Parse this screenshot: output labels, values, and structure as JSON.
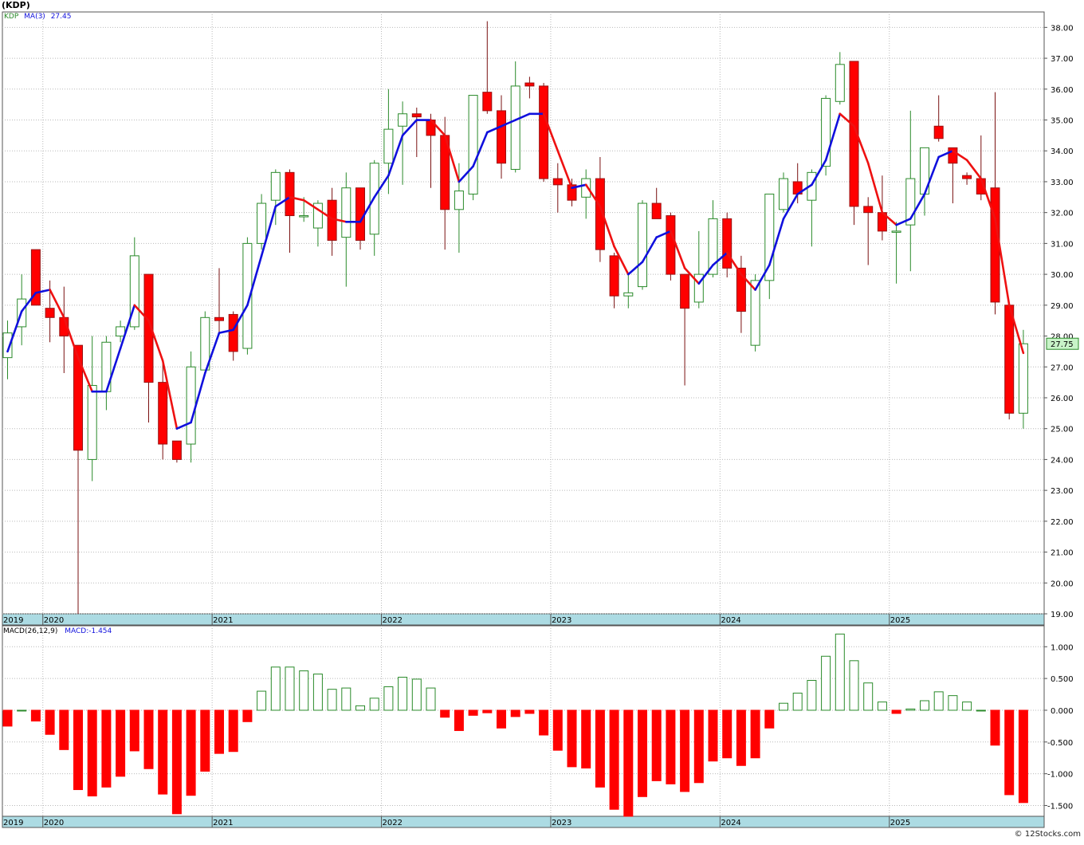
{
  "header": {
    "title": "(KDP)"
  },
  "price_legend": {
    "symbol": "KDP",
    "ma_label": "MA(3)",
    "ma_value": "27.45"
  },
  "macd_legend": {
    "label": "MACD(26,12,9)",
    "value_label": "MACD:-1.454"
  },
  "last_price": "27.75",
  "credit": "© 12Stocks.com",
  "colors": {
    "up": "#2a8a2a",
    "down": "#ff0000",
    "ma_up": "#1010dd",
    "ma_down": "#ee1111",
    "axis_band": "#acdbe3",
    "grid": "#b9b9b9",
    "last_price_box": "#c8f3c8"
  },
  "chart_data": [
    {
      "type": "candlestick",
      "title": "(KDP)",
      "period": "monthly",
      "ylim": [
        19,
        38.5
      ],
      "yticks": [
        19.0,
        20.0,
        21.0,
        22.0,
        23.0,
        24.0,
        25.0,
        26.0,
        27.0,
        28.0,
        29.0,
        30.0,
        31.0,
        32.0,
        33.0,
        34.0,
        35.0,
        36.0,
        37.0,
        38.0
      ],
      "year_labels": [
        "2019",
        "2020",
        "2021",
        "2022",
        "2023",
        "2024",
        "2025"
      ],
      "year_boundaries": [
        0,
        3,
        15,
        27,
        39,
        51,
        63
      ],
      "ohlc": [
        [
          27.3,
          28.5,
          26.6,
          28.1
        ],
        [
          28.3,
          30.0,
          27.7,
          29.2
        ],
        [
          30.8,
          30.8,
          29.0,
          29.0
        ],
        [
          28.9,
          29.8,
          27.8,
          28.6
        ],
        [
          28.6,
          29.6,
          26.8,
          28.0
        ],
        [
          27.7,
          27.7,
          19.0,
          24.3
        ],
        [
          24.0,
          28.0,
          23.3,
          26.4
        ],
        [
          26.2,
          28.0,
          25.6,
          27.8
        ],
        [
          28.0,
          28.5,
          27.8,
          28.3
        ],
        [
          28.3,
          31.2,
          28.2,
          30.6
        ],
        [
          30.0,
          30.0,
          25.2,
          26.5
        ],
        [
          26.5,
          27.2,
          24.0,
          24.5
        ],
        [
          24.6,
          24.6,
          23.9,
          24.0
        ],
        [
          24.5,
          27.5,
          23.9,
          27.0
        ],
        [
          26.9,
          28.8,
          26.9,
          28.6
        ],
        [
          28.6,
          30.2,
          28.1,
          28.5
        ],
        [
          28.7,
          28.8,
          27.2,
          27.5
        ],
        [
          27.6,
          31.2,
          27.4,
          31.0
        ],
        [
          31.0,
          32.6,
          30.8,
          32.3
        ],
        [
          32.4,
          33.4,
          31.6,
          33.3
        ],
        [
          33.3,
          33.4,
          30.7,
          31.9
        ],
        [
          31.9,
          32.5,
          31.7,
          31.9
        ],
        [
          31.5,
          32.4,
          30.9,
          32.3
        ],
        [
          32.4,
          32.8,
          30.6,
          31.1
        ],
        [
          31.2,
          33.3,
          29.6,
          32.8
        ],
        [
          32.8,
          32.8,
          30.8,
          31.1
        ],
        [
          31.3,
          33.7,
          30.6,
          33.6
        ],
        [
          33.6,
          36.0,
          32.6,
          34.7
        ],
        [
          34.8,
          35.6,
          32.9,
          35.2
        ],
        [
          35.2,
          35.4,
          33.8,
          35.1
        ],
        [
          35.0,
          35.2,
          32.8,
          34.5
        ],
        [
          34.5,
          35.1,
          30.8,
          32.1
        ],
        [
          32.1,
          33.6,
          30.7,
          32.7
        ],
        [
          32.6,
          35.8,
          32.4,
          35.8
        ],
        [
          35.9,
          38.2,
          35.2,
          35.3
        ],
        [
          35.3,
          35.8,
          33.1,
          33.6
        ],
        [
          33.4,
          36.9,
          33.3,
          36.1
        ],
        [
          36.2,
          36.4,
          35.7,
          36.1
        ],
        [
          36.1,
          36.2,
          33.0,
          33.1
        ],
        [
          33.1,
          33.6,
          32.0,
          32.9
        ],
        [
          32.9,
          33.1,
          32.2,
          32.4
        ],
        [
          32.5,
          33.4,
          31.8,
          33.1
        ],
        [
          33.1,
          33.8,
          30.4,
          30.8
        ],
        [
          30.6,
          30.7,
          28.9,
          29.3
        ],
        [
          29.3,
          30.0,
          28.9,
          29.4
        ],
        [
          29.6,
          32.4,
          29.5,
          32.3
        ],
        [
          32.3,
          32.8,
          31.9,
          31.8
        ],
        [
          31.9,
          32.0,
          29.8,
          30.0
        ],
        [
          30.0,
          30.0,
          26.4,
          28.9
        ],
        [
          29.1,
          31.4,
          28.9,
          30.0
        ],
        [
          30.0,
          32.4,
          29.9,
          31.8
        ],
        [
          31.8,
          32.0,
          29.9,
          30.2
        ],
        [
          30.2,
          30.6,
          28.1,
          28.8
        ],
        [
          27.7,
          30.0,
          27.5,
          29.8
        ],
        [
          29.8,
          32.6,
          29.2,
          32.6
        ],
        [
          32.1,
          33.3,
          32.0,
          33.1
        ],
        [
          33.0,
          33.6,
          32.3,
          32.6
        ],
        [
          32.4,
          33.4,
          30.9,
          33.3
        ],
        [
          33.5,
          35.8,
          33.2,
          35.7
        ],
        [
          35.6,
          37.2,
          35.5,
          36.8
        ],
        [
          36.9,
          36.9,
          31.6,
          32.2
        ],
        [
          32.2,
          32.5,
          30.3,
          32.0
        ],
        [
          32.0,
          33.2,
          31.1,
          31.4
        ],
        [
          31.4,
          31.7,
          29.7,
          31.4
        ],
        [
          31.6,
          35.3,
          30.1,
          33.1
        ],
        [
          32.6,
          34.1,
          31.9,
          34.1
        ],
        [
          34.8,
          35.8,
          34.3,
          34.4
        ],
        [
          34.1,
          34.1,
          32.3,
          33.6
        ],
        [
          33.2,
          33.3,
          32.9,
          33.1
        ],
        [
          33.1,
          34.5,
          32.4,
          32.6
        ],
        [
          32.8,
          35.9,
          28.7,
          29.1
        ],
        [
          29.0,
          29.1,
          25.3,
          25.5
        ],
        [
          25.5,
          28.2,
          25.0,
          27.75
        ]
      ],
      "ma3": [
        27.5,
        28.8,
        29.4,
        29.5,
        28.6,
        27.3,
        26.2,
        26.2,
        27.6,
        29.0,
        28.5,
        27.2,
        25.0,
        25.2,
        26.8,
        28.1,
        28.2,
        29.0,
        30.6,
        32.2,
        32.5,
        32.4,
        32.1,
        31.8,
        31.7,
        31.7,
        32.5,
        33.2,
        34.5,
        35.0,
        35.0,
        34.5,
        33.0,
        33.5,
        34.6,
        34.8,
        35.0,
        35.2,
        35.2,
        34.0,
        32.8,
        32.9,
        32.2,
        30.9,
        30.0,
        30.4,
        31.2,
        31.4,
        30.2,
        29.7,
        30.3,
        30.7,
        30.0,
        29.5,
        30.3,
        31.8,
        32.6,
        32.9,
        33.7,
        35.2,
        34.8,
        33.6,
        32.0,
        31.6,
        31.8,
        32.6,
        33.8,
        34.0,
        33.7,
        33.1,
        31.8,
        29.0,
        27.45
      ],
      "ma_color_segments": "blue while rising, red while falling"
    },
    {
      "type": "bar",
      "title": "MACD(26,12,9)",
      "ylim": [
        -1.67,
        1.33
      ],
      "yticks": [
        1.0,
        0.5,
        0.0,
        -0.5,
        -1.0,
        -1.5
      ],
      "ytick_labels": [
        "1.000",
        "0.500",
        "0.000",
        "-0.500",
        "-1.000",
        "-1.500"
      ],
      "values": [
        -0.25,
        0.0,
        -0.17,
        -0.38,
        -0.62,
        -1.25,
        -1.35,
        -1.21,
        -1.04,
        -0.64,
        -0.92,
        -1.32,
        -1.63,
        -1.34,
        -0.96,
        -0.68,
        -0.65,
        -0.18,
        0.3,
        0.68,
        0.68,
        0.62,
        0.57,
        0.33,
        0.35,
        0.07,
        0.19,
        0.37,
        0.52,
        0.49,
        0.35,
        -0.11,
        -0.32,
        -0.08,
        -0.04,
        -0.28,
        -0.1,
        -0.05,
        -0.39,
        -0.63,
        -0.89,
        -0.91,
        -1.21,
        -1.56,
        -1.67,
        -1.36,
        -1.11,
        -1.16,
        -1.28,
        -1.14,
        -0.8,
        -0.75,
        -0.87,
        -0.75,
        -0.28,
        0.11,
        0.27,
        0.47,
        0.85,
        1.2,
        0.78,
        0.43,
        0.13,
        -0.05,
        0.02,
        0.15,
        0.29,
        0.23,
        0.13,
        0.0,
        -0.55,
        -1.33,
        -1.454
      ]
    }
  ]
}
